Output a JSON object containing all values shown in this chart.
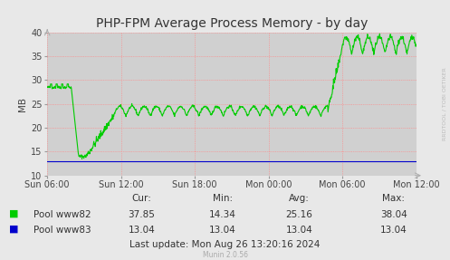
{
  "title": "PHP-FPM Average Process Memory - by day",
  "ylabel": "MB",
  "ylim": [
    10,
    40
  ],
  "yticks": [
    10,
    15,
    20,
    25,
    30,
    35,
    40
  ],
  "xtick_labels": [
    "Sun 06:00",
    "Sun 12:00",
    "Sun 18:00",
    "Mon 00:00",
    "Mon 06:00",
    "Mon 12:00"
  ],
  "xtick_positions": [
    0.0,
    0.2,
    0.4,
    0.6,
    0.8,
    1.0
  ],
  "bg_color": "#e8e8e8",
  "plot_bg_color": "#d0d0d0",
  "grid_color": "#ff8888",
  "line_www82_color": "#00cc00",
  "line_www83_color": "#0000cc",
  "legend_www82": "Pool www82",
  "legend_www83": "Pool www83",
  "stats_cur_www82": "37.85",
  "stats_min_www82": "14.34",
  "stats_avg_www82": "25.16",
  "stats_max_www82": "38.04",
  "stats_cur_www83": "13.04",
  "stats_min_www83": "13.04",
  "stats_avg_www83": "13.04",
  "stats_max_www83": "13.04",
  "last_update": "Last update: Mon Aug 26 13:20:16 2024",
  "munin_version": "Munin 2.0.56",
  "rrdtool_label": "RRDTOOL / TOBI OETIKER",
  "title_fontsize": 10,
  "axis_fontsize": 7,
  "legend_fontsize": 7.5,
  "stats_fontsize": 7.5
}
